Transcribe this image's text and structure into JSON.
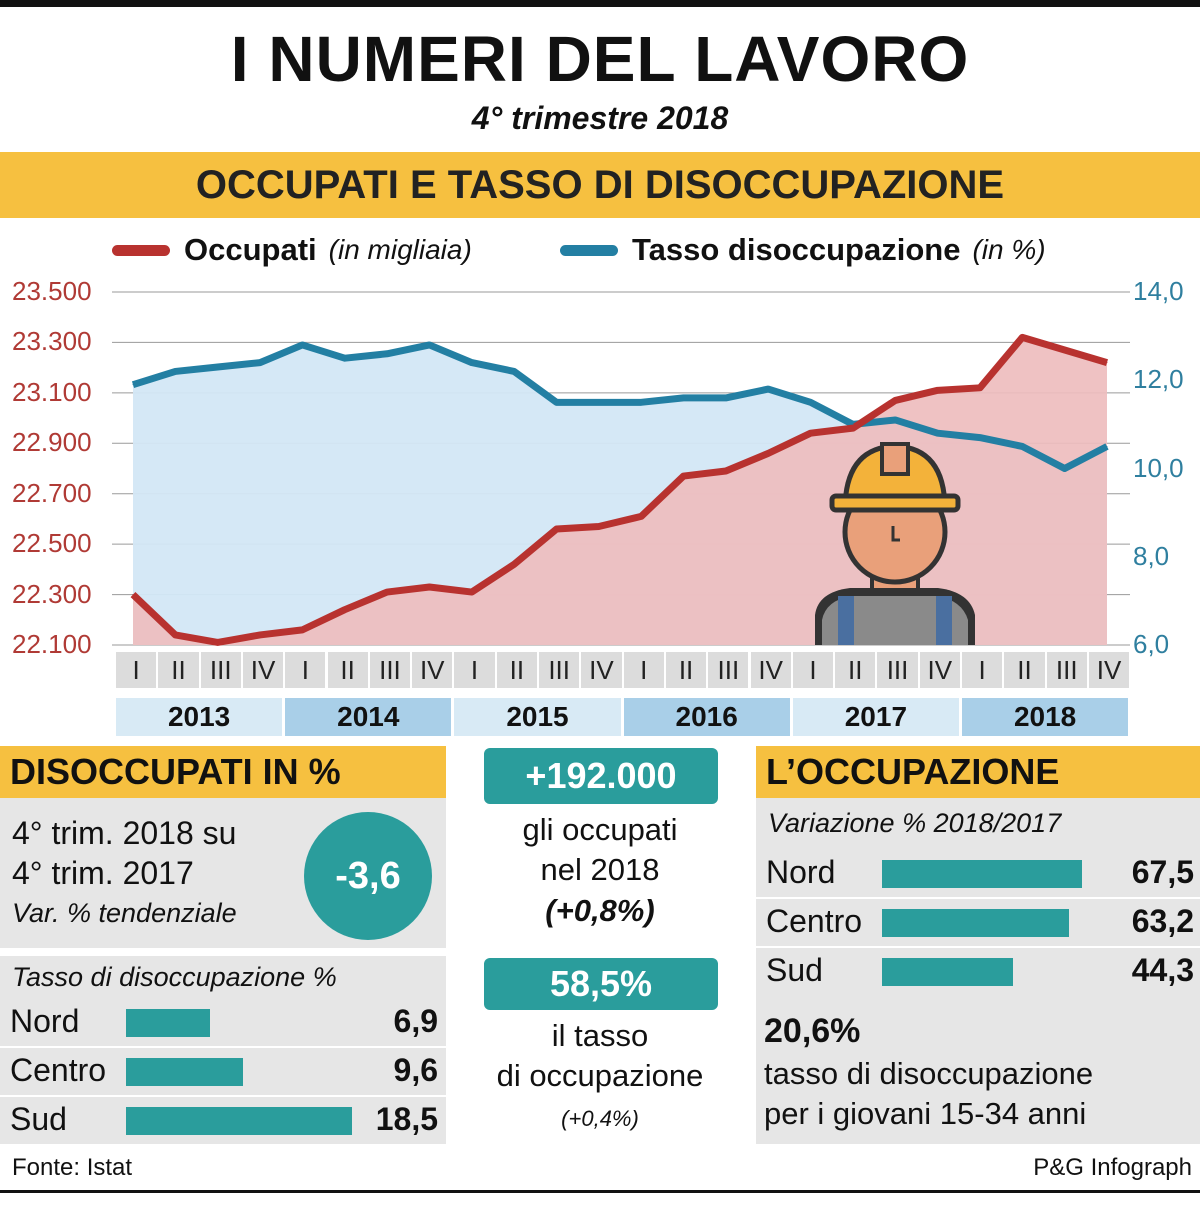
{
  "header": {
    "title": "I NUMERI DEL LAVORO",
    "subtitle": "4° trimestre 2018",
    "section_title": "OCCUPATI E TASSO DI DISOCCUPAZIONE"
  },
  "legend": {
    "occupati_label": "Occupati",
    "occupati_unit": "(in migliaia)",
    "tasso_label": "Tasso disoccupazione",
    "tasso_unit": "(in %)"
  },
  "colors": {
    "occupati": "#b8322f",
    "tasso": "#237fa3",
    "accent": "#f6c040",
    "teal": "#2a9d9c"
  },
  "chart_data": {
    "type": "area",
    "x": [
      "I",
      "II",
      "III",
      "IV",
      "I",
      "II",
      "III",
      "IV",
      "I",
      "II",
      "III",
      "IV",
      "I",
      "II",
      "III",
      "IV",
      "I",
      "II",
      "III",
      "IV",
      "I",
      "II",
      "III",
      "IV"
    ],
    "years": [
      "2013",
      "2014",
      "2015",
      "2016",
      "2017",
      "2018"
    ],
    "left_axis": {
      "ticks": [
        "23.500",
        "23.300",
        "23.100",
        "22.900",
        "22.700",
        "22.500",
        "22.300",
        "22.100"
      ],
      "ylim": [
        22100,
        23500
      ]
    },
    "right_axis": {
      "ticks": [
        "14,0",
        "12,0",
        "10,0",
        "8,0",
        "6,0"
      ],
      "ylim": [
        6.0,
        14.0
      ]
    },
    "series": [
      {
        "name": "Occupati",
        "axis": "left",
        "values": [
          22300,
          22140,
          22110,
          22140,
          22160,
          22240,
          22310,
          22330,
          22310,
          22420,
          22560,
          22570,
          22610,
          22770,
          22790,
          22860,
          22940,
          22960,
          23070,
          23110,
          23120,
          23320,
          23270,
          23220
        ]
      },
      {
        "name": "Tasso disoccupazione",
        "axis": "right",
        "values": [
          11.9,
          12.2,
          12.3,
          12.4,
          12.8,
          12.5,
          12.6,
          12.8,
          12.4,
          12.2,
          11.5,
          11.5,
          11.5,
          11.6,
          11.6,
          11.8,
          11.5,
          11.0,
          11.1,
          10.8,
          10.7,
          10.5,
          10.0,
          10.5
        ]
      }
    ]
  },
  "disoccupati": {
    "title": "DISOCCUPATI IN %",
    "line1": "4° trim. 2018 su",
    "line2": "4° trim. 2017",
    "line3": "Var. % tendenziale",
    "value": "-3,6",
    "table_title": "Tasso di disoccupazione %",
    "rows": [
      {
        "label": "Nord",
        "value": "6,9",
        "num": 6.9
      },
      {
        "label": "Centro",
        "value": "9,6",
        "num": 9.6
      },
      {
        "label": "Sud",
        "value": "18,5",
        "num": 18.5
      }
    ]
  },
  "center": {
    "box1": "+192.000",
    "text1a": "gli occupati",
    "text1b": "nel 2018",
    "text1c": "(+0,8%)",
    "box2": "58,5%",
    "text2a": "il tasso",
    "text2b": "di occupazione",
    "text2c": "(+0,4%)"
  },
  "occupazione": {
    "title": "L’OCCUPAZIONE",
    "subtitle": "Variazione % 2018/2017",
    "rows": [
      {
        "label": "Nord",
        "value": "67,5",
        "num": 67.5
      },
      {
        "label": "Centro",
        "value": "63,2",
        "num": 63.2
      },
      {
        "label": "Sud",
        "value": "44,3",
        "num": 44.3
      }
    ],
    "giovani_value": "20,6%",
    "giovani_text1": "tasso di disoccupazione",
    "giovani_text2": "per i giovani 15-34 anni"
  },
  "footer": {
    "source": "Fonte: Istat",
    "credit": "P&G Infograph"
  }
}
